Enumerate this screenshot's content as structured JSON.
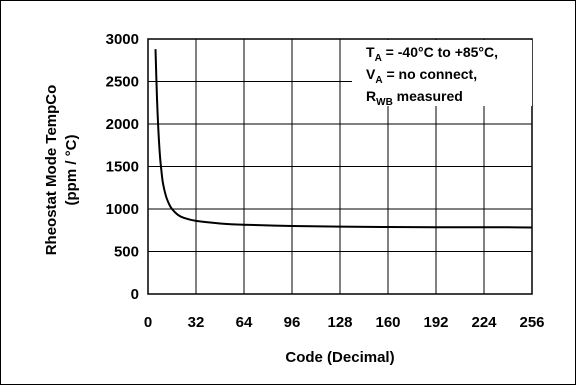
{
  "chart_data": {
    "type": "line",
    "xlabel": "Code (Decimal)",
    "ylabel_line1": "Rheostat Mode TempCo",
    "ylabel_line2": "(ppm / °C)",
    "xlim": [
      0,
      256
    ],
    "ylim": [
      0,
      3000
    ],
    "x_ticks": [
      0,
      32,
      64,
      96,
      128,
      160,
      192,
      224,
      256
    ],
    "y_ticks": [
      0,
      500,
      1000,
      1500,
      2000,
      2500,
      3000
    ],
    "grid": true,
    "annotation": {
      "line1": {
        "main": "T",
        "sub": "A",
        "rest": " = -40°C to +85°C,"
      },
      "line2": {
        "main": "V",
        "sub": "A",
        "rest": " = no connect,"
      },
      "line3": {
        "main": "R",
        "sub": "WB",
        "rest": " measured"
      }
    },
    "series": [
      {
        "x": [
          5,
          6,
          7,
          8,
          9,
          10,
          12,
          14,
          16,
          20,
          24,
          32,
          48,
          64,
          96,
          128,
          160,
          192,
          224,
          240,
          256
        ],
        "values": [
          2880,
          2300,
          1900,
          1620,
          1440,
          1300,
          1150,
          1060,
          1000,
          930,
          895,
          860,
          830,
          815,
          800,
          792,
          788,
          786,
          785,
          785,
          782
        ]
      }
    ]
  }
}
